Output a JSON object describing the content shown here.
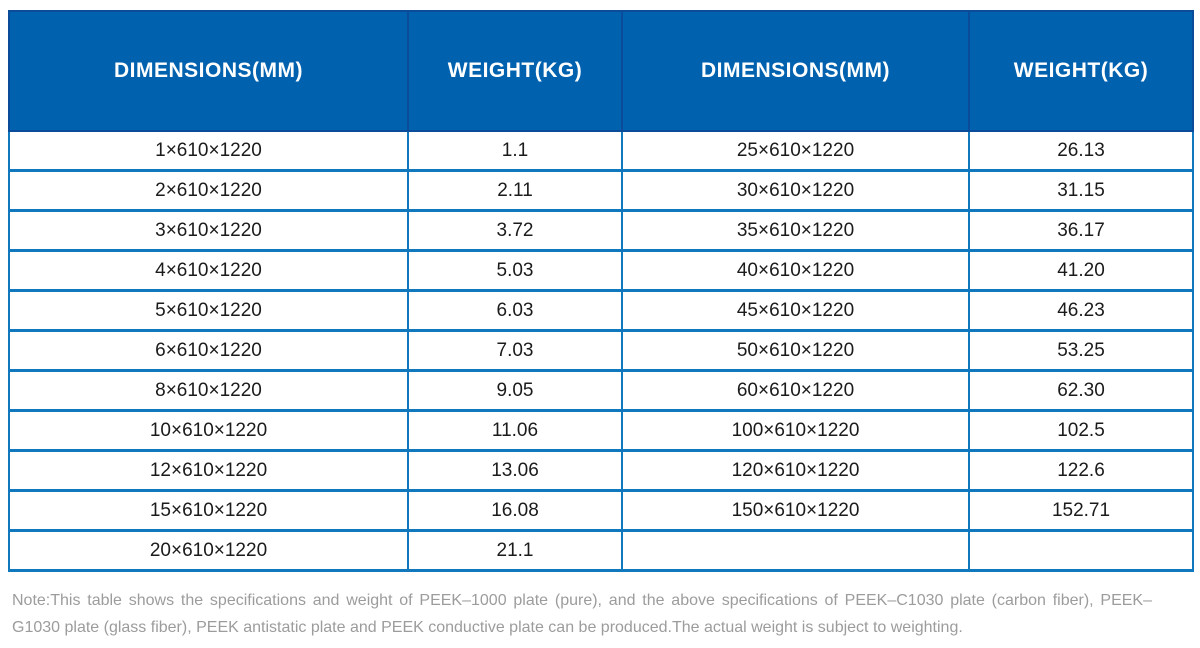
{
  "table": {
    "headers": [
      "DIMENSIONS(MM)",
      "WEIGHT(KG)",
      "DIMENSIONS(MM)",
      "WEIGHT(KG)"
    ],
    "rows": [
      [
        "1×610×1220",
        "1.1",
        "25×610×1220",
        "26.13"
      ],
      [
        "2×610×1220",
        "2.11",
        "30×610×1220",
        "31.15"
      ],
      [
        "3×610×1220",
        "3.72",
        "35×610×1220",
        "36.17"
      ],
      [
        "4×610×1220",
        "5.03",
        "40×610×1220",
        "41.20"
      ],
      [
        "5×610×1220",
        "6.03",
        "45×610×1220",
        "46.23"
      ],
      [
        "6×610×1220",
        "7.03",
        "50×610×1220",
        "53.25"
      ],
      [
        "8×610×1220",
        "9.05",
        "60×610×1220",
        "62.30"
      ],
      [
        "10×610×1220",
        "11.06",
        "100×610×1220",
        "102.5"
      ],
      [
        "12×610×1220",
        "13.06",
        "120×610×1220",
        "122.6"
      ],
      [
        "15×610×1220",
        "16.08",
        "150×610×1220",
        "152.71"
      ],
      [
        "20×610×1220",
        "21.1",
        "",
        ""
      ]
    ]
  },
  "note": "Note:This table shows the specifications and weight of PEEK–1000 plate (pure), and the above specifications of PEEK–C1030 plate (carbon fiber), PEEK–G1030 plate (glass fiber), PEEK antistatic plate and PEEK conductive plate can be produced.The actual weight is subject to weighting.",
  "colors": {
    "header_bg": "#0061AF",
    "header_border": "#0A4C99",
    "grid_border": "#1278BD",
    "body_text": "#1B1B1B",
    "note_text": "#9C9C9C"
  }
}
